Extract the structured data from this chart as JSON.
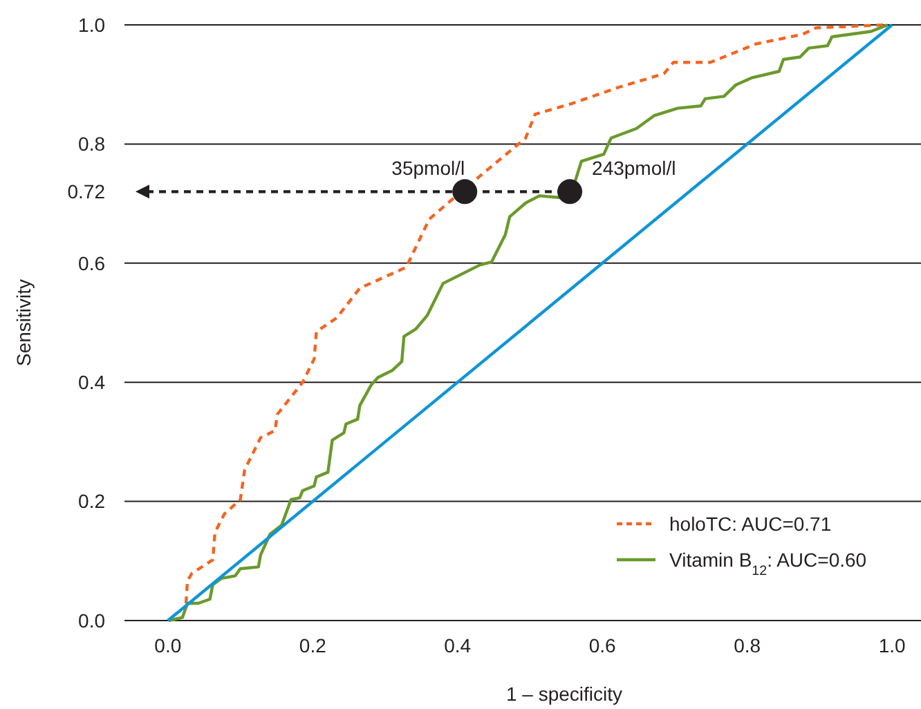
{
  "chart_data": {
    "type": "line",
    "xlabel": "1 – specificity",
    "ylabel": "Sensitivity",
    "xlim": [
      -0.06,
      1.04
    ],
    "xticks": [
      {
        "value": 0,
        "label": "0.0"
      },
      {
        "value": 0.2,
        "label": "0.2"
      },
      {
        "value": 0.4,
        "label": "0.4"
      },
      {
        "value": 0.6,
        "label": "0.6"
      },
      {
        "value": 0.8,
        "label": "0.8"
      },
      {
        "value": 1,
        "label": "1.0"
      }
    ],
    "ylim": [
      0,
      1
    ],
    "yticks": [
      {
        "value": 0,
        "label": "0.0"
      },
      {
        "value": 0.2,
        "label": "0.2"
      },
      {
        "value": 0.4,
        "label": "0.4"
      },
      {
        "value": 0.6,
        "label": "0.6"
      },
      {
        "value": 0.8,
        "label": "0.8"
      },
      {
        "value": 1,
        "label": "1.0"
      }
    ],
    "grid": "y",
    "legend": "bottom right",
    "ref_lines": [
      {
        "axis": "y",
        "value": 0.72,
        "label": "0.72",
        "color": "#231f20",
        "line_style": "dashed"
      }
    ],
    "annotations": [
      {
        "text": "35pmol/l",
        "x": 0.41,
        "y": 0.72
      },
      {
        "text": "243pmol/l",
        "x": 0.555,
        "y": 0.72
      }
    ],
    "series": [
      {
        "name": "holoTC: AUC=0.71",
        "color": "#f26522",
        "line_style": "dashed",
        "x": [
          0.025,
          0.027,
          0.033,
          0.062,
          0.065,
          0.078,
          0.1,
          0.106,
          0.128,
          0.148,
          0.151,
          0.186,
          0.202,
          0.205,
          0.233,
          0.265,
          0.329,
          0.361,
          0.408,
          0.494,
          0.507,
          0.558,
          0.622,
          0.685,
          0.698,
          0.749,
          0.812,
          0.876,
          0.895,
          0.99
        ],
        "values": [
          0.029,
          0.067,
          0.079,
          0.102,
          0.148,
          0.179,
          0.203,
          0.253,
          0.307,
          0.319,
          0.346,
          0.4,
          0.439,
          0.485,
          0.508,
          0.558,
          0.593,
          0.674,
          0.723,
          0.81,
          0.85,
          0.868,
          0.895,
          0.918,
          0.937,
          0.937,
          0.968,
          0.984,
          0.995,
          1.0
        ]
      },
      {
        "name": "Vitamin B$_{12}$: AUC=0.60",
        "color": "#6a9a2c",
        "line_style": "solid",
        "x": [
          0.001,
          0.02,
          0.027,
          0.042,
          0.058,
          0.062,
          0.074,
          0.093,
          0.1,
          0.125,
          0.128,
          0.141,
          0.157,
          0.17,
          0.182,
          0.186,
          0.202,
          0.205,
          0.221,
          0.227,
          0.243,
          0.246,
          0.262,
          0.265,
          0.281,
          0.29,
          0.31,
          0.323,
          0.326,
          0.342,
          0.358,
          0.38,
          0.431,
          0.447,
          0.466,
          0.472,
          0.494,
          0.513,
          0.542,
          0.561,
          0.571,
          0.602,
          0.612,
          0.647,
          0.672,
          0.704,
          0.736,
          0.742,
          0.768,
          0.784,
          0.806,
          0.844,
          0.85,
          0.873,
          0.885,
          0.911,
          0.917,
          0.971,
          0.994
        ],
        "values": [
          0,
          0.005,
          0.029,
          0.029,
          0.036,
          0.06,
          0.071,
          0.075,
          0.087,
          0.09,
          0.11,
          0.145,
          0.16,
          0.203,
          0.206,
          0.218,
          0.226,
          0.241,
          0.249,
          0.303,
          0.315,
          0.33,
          0.338,
          0.361,
          0.396,
          0.408,
          0.42,
          0.435,
          0.477,
          0.489,
          0.512,
          0.566,
          0.597,
          0.602,
          0.648,
          0.678,
          0.701,
          0.713,
          0.71,
          0.732,
          0.771,
          0.783,
          0.81,
          0.826,
          0.848,
          0.86,
          0.864,
          0.876,
          0.88,
          0.899,
          0.911,
          0.922,
          0.942,
          0.946,
          0.961,
          0.965,
          0.98,
          0.989,
          1.0
        ]
      },
      {
        "color": "#0f95d6",
        "line_style": "solid",
        "x": [
          0,
          1
        ],
        "values": [
          0,
          1
        ]
      },
      {
        "type": "scatter",
        "color": "#231f20",
        "marker": "circle",
        "x": [
          0.41,
          0.555
        ],
        "values": [
          0.72,
          0.72
        ]
      }
    ]
  }
}
